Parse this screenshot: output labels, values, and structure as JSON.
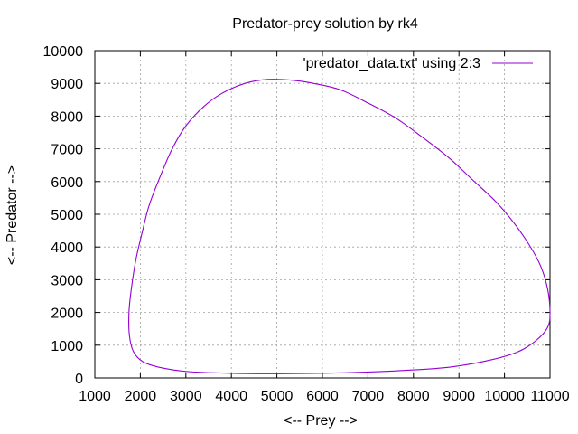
{
  "chart_data": {
    "type": "line",
    "title": "Predator-prey solution by rk4",
    "xlabel": "<-- Prey -->",
    "ylabel": "<-- Predator -->",
    "xlim": [
      1000,
      11000
    ],
    "ylim": [
      0,
      10000
    ],
    "xticks": [
      1000,
      2000,
      3000,
      4000,
      5000,
      6000,
      7000,
      8000,
      9000,
      10000,
      11000
    ],
    "yticks": [
      0,
      1000,
      2000,
      3000,
      4000,
      5000,
      6000,
      7000,
      8000,
      9000,
      10000
    ],
    "grid": true,
    "legend_position": "top-right",
    "series": [
      {
        "name": "'predator_data.txt' using 2:3",
        "color": "#9400d3",
        "closed": true,
        "points": [
          [
            11000,
            2000
          ],
          [
            10950,
            2700
          ],
          [
            10800,
            3400
          ],
          [
            10550,
            4050
          ],
          [
            10200,
            4750
          ],
          [
            9800,
            5400
          ],
          [
            9300,
            6050
          ],
          [
            8800,
            6700
          ],
          [
            8200,
            7350
          ],
          [
            7600,
            7950
          ],
          [
            7000,
            8400
          ],
          [
            6400,
            8800
          ],
          [
            5800,
            9000
          ],
          [
            5300,
            9100
          ],
          [
            4800,
            9120
          ],
          [
            4300,
            9000
          ],
          [
            3800,
            8700
          ],
          [
            3400,
            8300
          ],
          [
            3000,
            7700
          ],
          [
            2700,
            7000
          ],
          [
            2450,
            6200
          ],
          [
            2200,
            5300
          ],
          [
            2050,
            4500
          ],
          [
            1900,
            3600
          ],
          [
            1800,
            2700
          ],
          [
            1750,
            2000
          ],
          [
            1760,
            1300
          ],
          [
            1850,
            800
          ],
          [
            2050,
            500
          ],
          [
            2400,
            330
          ],
          [
            3000,
            200
          ],
          [
            3800,
            150
          ],
          [
            4800,
            130
          ],
          [
            5800,
            140
          ],
          [
            6800,
            170
          ],
          [
            7800,
            230
          ],
          [
            8800,
            330
          ],
          [
            9700,
            550
          ],
          [
            10300,
            800
          ],
          [
            10700,
            1150
          ],
          [
            10950,
            1550
          ]
        ]
      }
    ]
  }
}
